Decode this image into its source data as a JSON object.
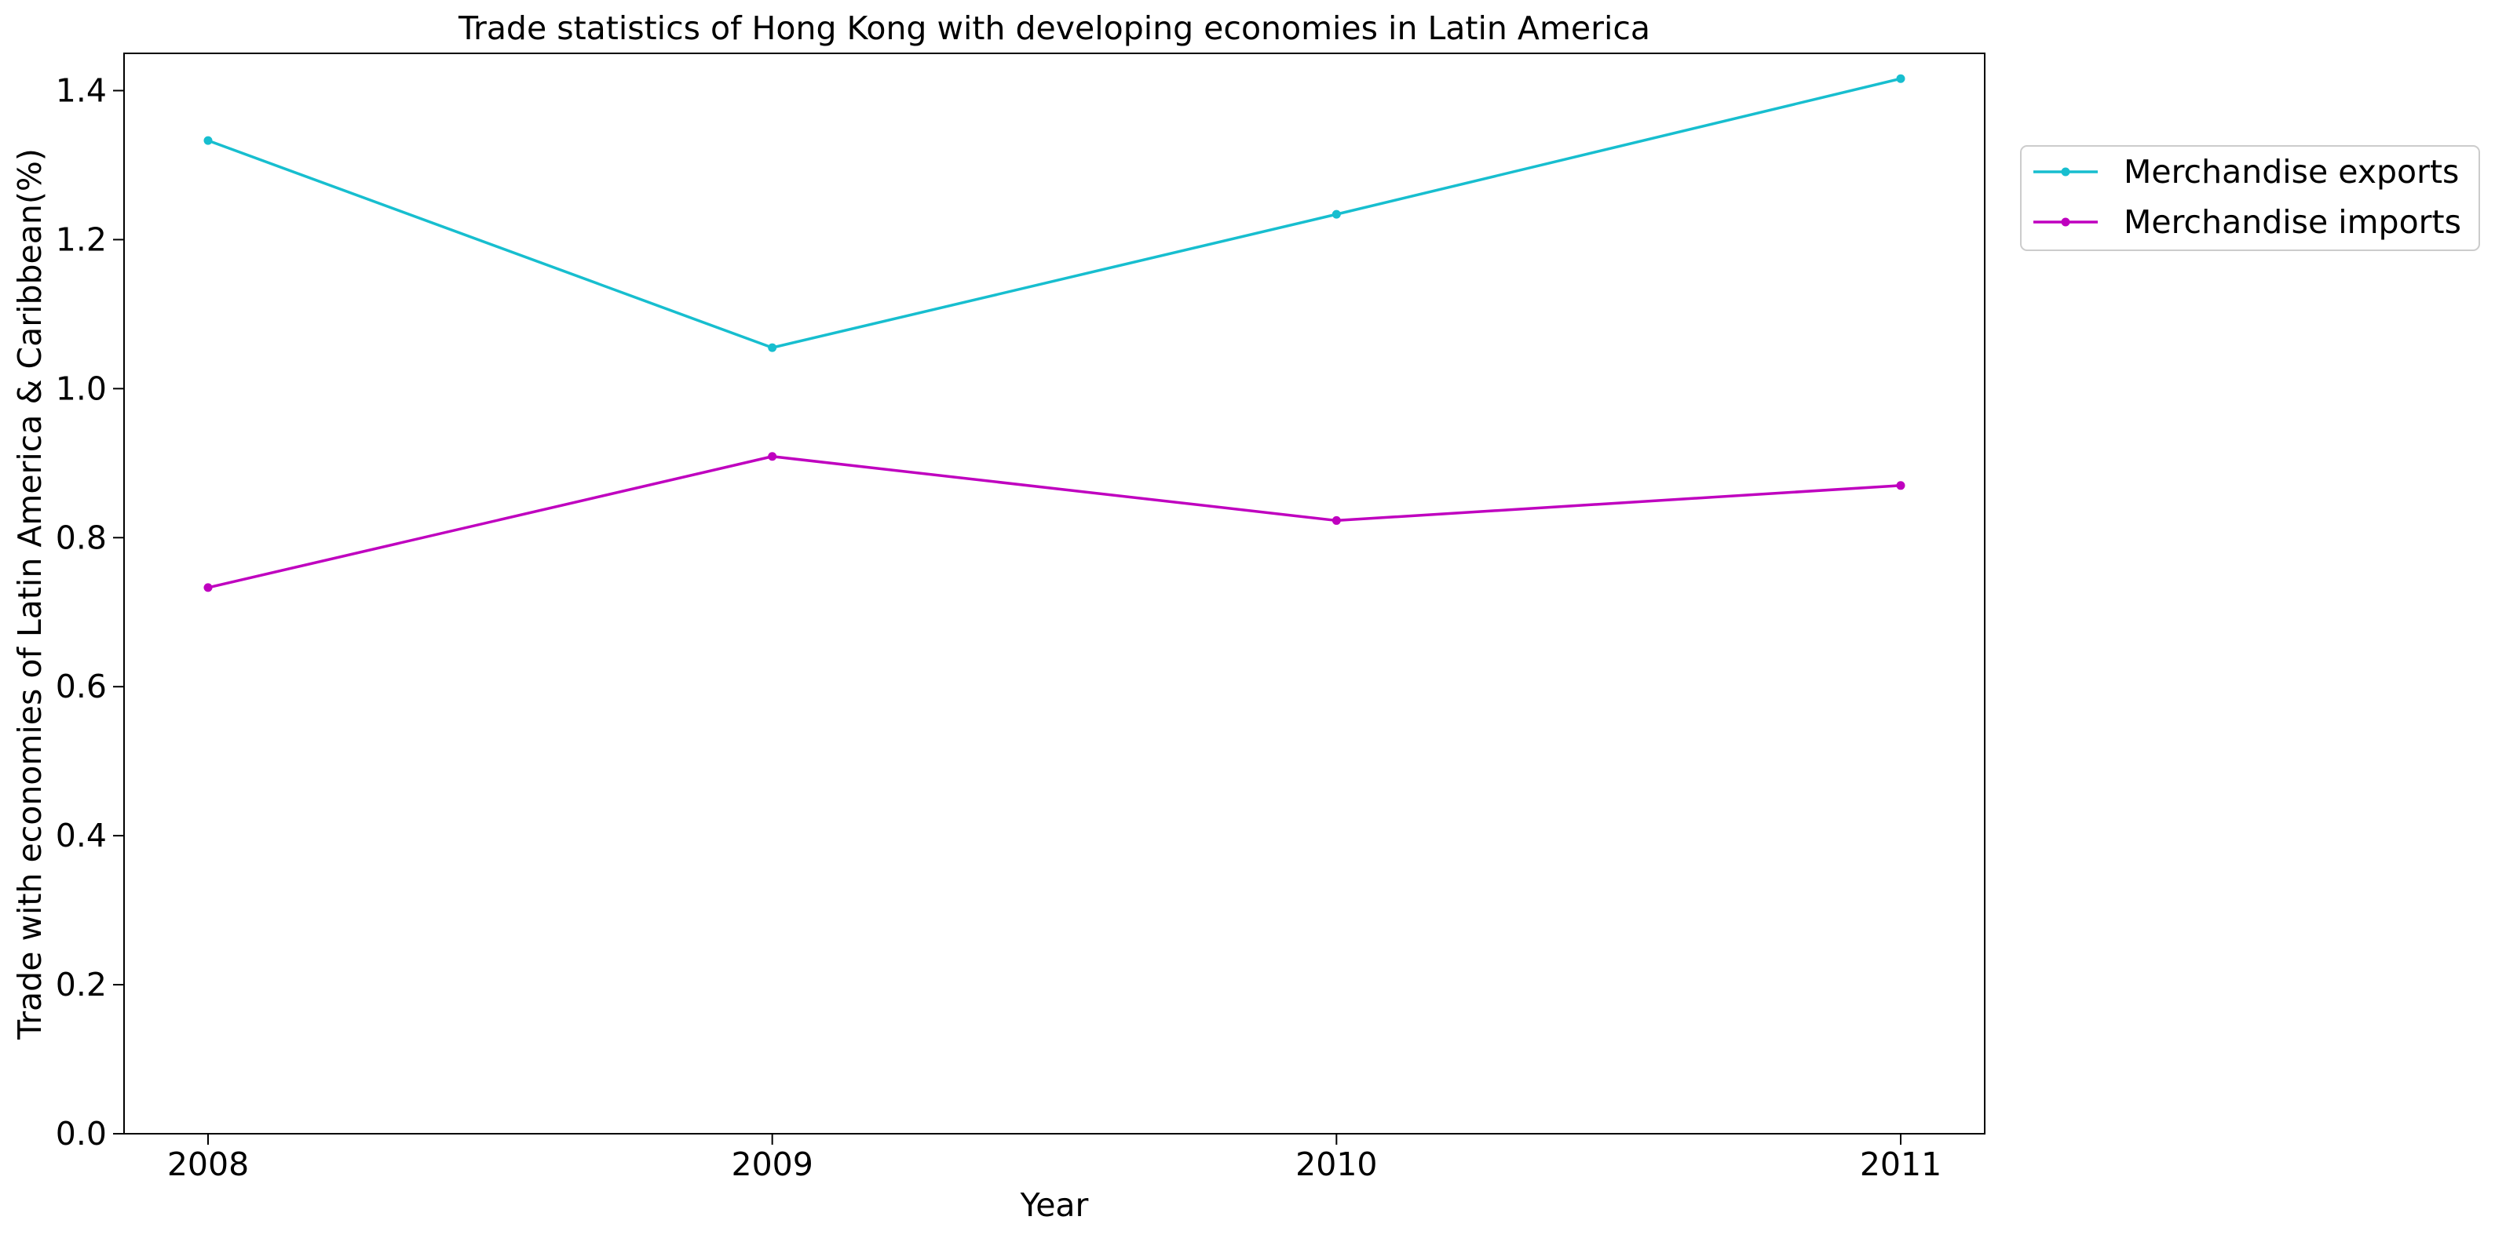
{
  "chart_data": {
    "type": "line",
    "title": "Trade statistics of Hong Kong with developing economies in Latin America",
    "xlabel": "Year",
    "ylabel": "Trade with economies of Latin America & Caribbean(%)",
    "categories": [
      "2008",
      "2009",
      "2010",
      "2011"
    ],
    "ylim": [
      0,
      1.45
    ],
    "yticks": [
      "0.0",
      "0.2",
      "0.4",
      "0.6",
      "0.8",
      "1.0",
      "1.2",
      "1.4"
    ],
    "grid": false,
    "legend_position": "outside-right-top",
    "series": [
      {
        "name": "Merchandise exports",
        "color": "#17becf",
        "marker": "dot",
        "values": [
          1.333,
          1.055,
          1.234,
          1.416
        ]
      },
      {
        "name": "Merchandise imports",
        "color": "#bf00bf",
        "marker": "dot",
        "values": [
          0.733,
          0.909,
          0.823,
          0.87
        ]
      }
    ]
  }
}
